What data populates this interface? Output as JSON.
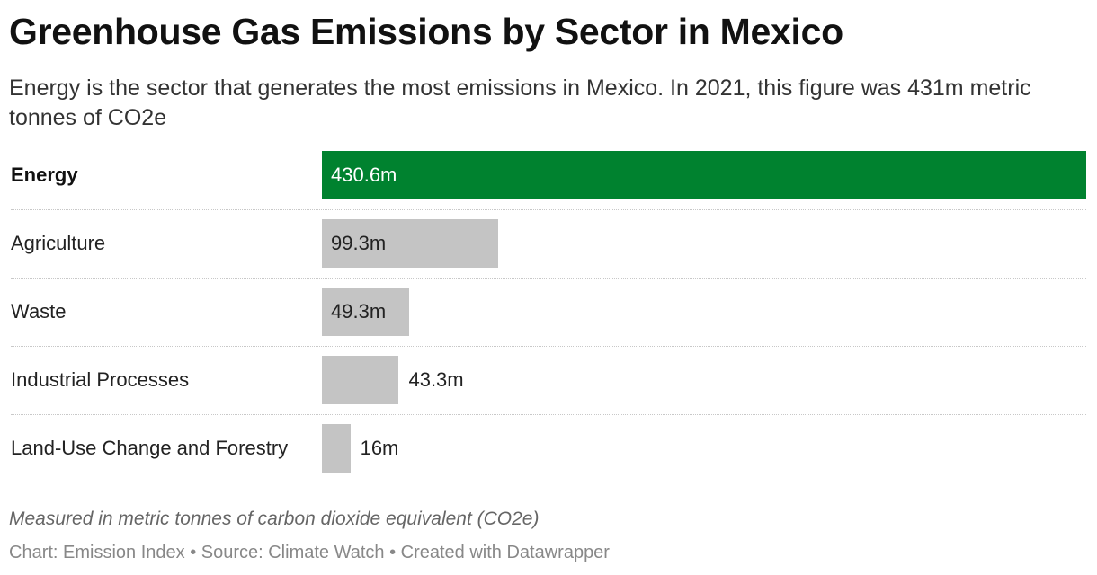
{
  "header": {
    "title": "Greenhouse Gas Emissions by Sector in Mexico",
    "subtitle": "Energy is the sector that generates the most emissions in Mexico. In 2021, this figure was 431m metric tonnes of CO2e"
  },
  "chart_data": {
    "type": "bar",
    "orientation": "horizontal",
    "categories": [
      "Energy",
      "Agriculture",
      "Waste",
      "Industrial Processes",
      "Land-Use Change and Forestry"
    ],
    "values": [
      430.6,
      99.3,
      49.3,
      43.3,
      16
    ],
    "value_labels": [
      "430.6m",
      "99.3m",
      "49.3m",
      "43.3m",
      "16m"
    ],
    "highlighted": "Energy",
    "xlim": [
      0,
      430.6
    ],
    "grid": false,
    "colors": {
      "highlight": "#00822f",
      "default": "#c4c4c4"
    }
  },
  "notes": {
    "measure": "Measured in metric tonnes of carbon dioxide equivalent (CO2e)"
  },
  "footer": {
    "credit": "Chart: Emission Index • Source: Climate Watch • Created with Datawrapper"
  }
}
